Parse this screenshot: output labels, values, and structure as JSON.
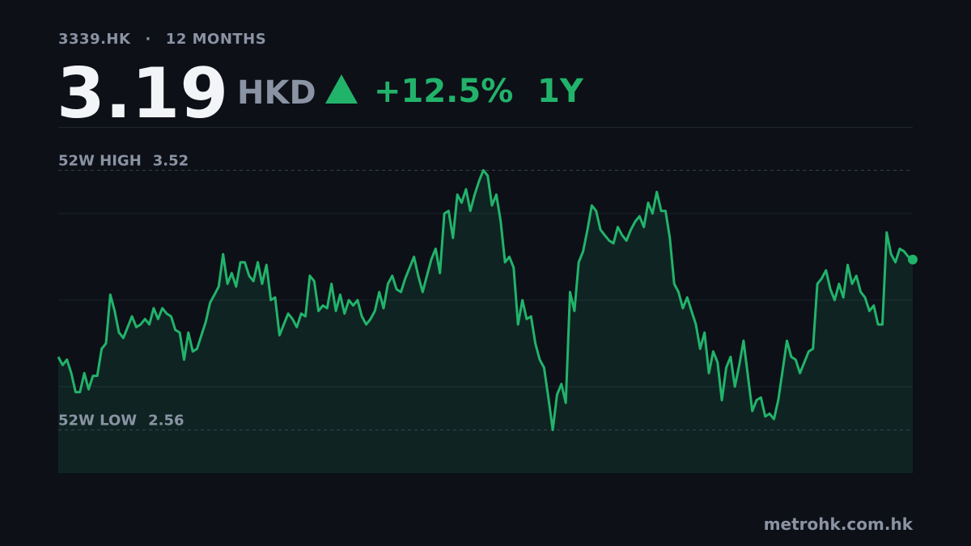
{
  "header": {
    "ticker": "3339.HK",
    "separator": "·",
    "period_label": "12 MONTHS",
    "price": 3.19,
    "currency": "HKD",
    "change": "+12.5%",
    "range": "1Y"
  },
  "chart_data": {
    "type": "line",
    "color": "#22b36b",
    "values": [
      2.83,
      2.8,
      2.82,
      2.77,
      2.7,
      2.7,
      2.77,
      2.71,
      2.76,
      2.76,
      2.86,
      2.88,
      3.06,
      3.0,
      2.92,
      2.9,
      2.94,
      2.98,
      2.94,
      2.95,
      2.97,
      2.95,
      3.01,
      2.97,
      3.01,
      2.99,
      2.98,
      2.93,
      2.92,
      2.82,
      2.92,
      2.85,
      2.86,
      2.91,
      2.96,
      3.03,
      3.06,
      3.09,
      3.21,
      3.1,
      3.14,
      3.09,
      3.18,
      3.18,
      3.13,
      3.11,
      3.18,
      3.1,
      3.17,
      3.04,
      3.05,
      2.91,
      2.95,
      2.99,
      2.97,
      2.94,
      2.99,
      2.98,
      3.13,
      3.11,
      3.0,
      3.02,
      3.01,
      3.1,
      3.0,
      3.06,
      2.99,
      3.04,
      3.02,
      3.04,
      2.98,
      2.95,
      2.97,
      3.0,
      3.07,
      3.01,
      3.1,
      3.13,
      3.08,
      3.07,
      3.12,
      3.16,
      3.2,
      3.13,
      3.07,
      3.13,
      3.19,
      3.23,
      3.14,
      3.36,
      3.37,
      3.27,
      3.43,
      3.4,
      3.45,
      3.37,
      3.43,
      3.48,
      3.52,
      3.5,
      3.39,
      3.43,
      3.33,
      3.18,
      3.2,
      3.16,
      2.95,
      3.04,
      2.97,
      2.98,
      2.88,
      2.82,
      2.79,
      2.68,
      2.56,
      2.69,
      2.73,
      2.66,
      3.07,
      3.0,
      3.18,
      3.22,
      3.3,
      3.39,
      3.37,
      3.3,
      3.28,
      3.26,
      3.25,
      3.31,
      3.28,
      3.26,
      3.3,
      3.33,
      3.35,
      3.31,
      3.4,
      3.36,
      3.44,
      3.37,
      3.37,
      3.27,
      3.1,
      3.07,
      3.01,
      3.05,
      3.0,
      2.95,
      2.86,
      2.92,
      2.77,
      2.85,
      2.81,
      2.67,
      2.79,
      2.83,
      2.72,
      2.8,
      2.89,
      2.76,
      2.63,
      2.67,
      2.68,
      2.61,
      2.62,
      2.6,
      2.67,
      2.78,
      2.89,
      2.83,
      2.82,
      2.77,
      2.81,
      2.85,
      2.86,
      3.1,
      3.12,
      3.15,
      3.08,
      3.04,
      3.1,
      3.05,
      3.17,
      3.1,
      3.13,
      3.07,
      3.05,
      3.0,
      3.02,
      2.95,
      2.95,
      3.29,
      3.21,
      3.18,
      3.23,
      3.22,
      3.2,
      3.19
    ],
    "ylim": [
      2.4,
      3.68
    ],
    "yticks": [
      2.72,
      3.04,
      3.36
    ],
    "grid": true,
    "area": true,
    "reference_lines": [
      {
        "label": "52W HIGH",
        "value": 3.52
      },
      {
        "label": "52W LOW",
        "value": 2.56
      }
    ]
  },
  "footer": {
    "source": "metrohk.com.hk"
  }
}
